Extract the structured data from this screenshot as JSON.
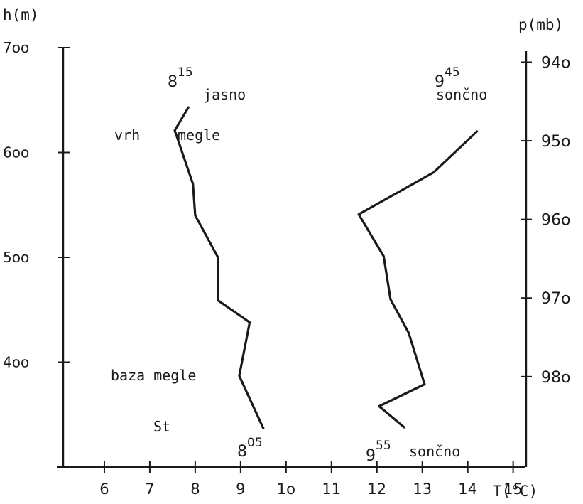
{
  "chart_data": {
    "type": "line",
    "left_axis_label": "h(m)",
    "right_axis_label": "p(mb)",
    "x_axis_label": "T(°C)",
    "x_tick_labels": [
      "6",
      "7",
      "8",
      "9",
      "1o",
      "11",
      "12",
      "13",
      "14",
      "15"
    ],
    "y_tick_labels": [
      {
        "value": 700,
        "text": "7oo"
      },
      {
        "value": 600,
        "text": "6oo"
      },
      {
        "value": 500,
        "text": "5oo"
      },
      {
        "value": 400,
        "text": "4oo"
      }
    ],
    "right_tick_labels": [
      {
        "value": 940,
        "text": "94o"
      },
      {
        "value": 950,
        "text": "95o"
      },
      {
        "value": 960,
        "text": "96o"
      },
      {
        "value": 970,
        "text": "97o"
      },
      {
        "value": 980,
        "text": "98o"
      }
    ],
    "xlim": [
      5,
      16.1
    ],
    "ylim": [
      300,
      700
    ],
    "plim": [
      938.6,
      991.5
    ],
    "series": [
      {
        "start_time": {
          "base": "8",
          "sup": "05"
        },
        "end_time": {
          "base": "8",
          "sup": "15"
        },
        "points": [
          {
            "x": 9.5,
            "y": 337
          },
          {
            "x": 8.97,
            "y": 387
          },
          {
            "x": 9.2,
            "y": 438
          },
          {
            "x": 8.5,
            "y": 459
          },
          {
            "x": 8.5,
            "y": 500
          },
          {
            "x": 8.0,
            "y": 540
          },
          {
            "x": 7.95,
            "y": 570
          },
          {
            "x": 7.55,
            "y": 621
          },
          {
            "x": 7.85,
            "y": 643
          }
        ]
      },
      {
        "start_time": {
          "base": "9",
          "sup": "55"
        },
        "end_time": {
          "base": "9",
          "sup": "45"
        },
        "points": [
          {
            "x": 12.6,
            "y": 338
          },
          {
            "x": 12.05,
            "y": 358
          },
          {
            "x": 13.05,
            "y": 379
          },
          {
            "x": 12.7,
            "y": 428
          },
          {
            "x": 12.3,
            "y": 460
          },
          {
            "x": 12.15,
            "y": 501
          },
          {
            "x": 11.6,
            "y": 541
          },
          {
            "x": 13.25,
            "y": 581
          },
          {
            "x": 14.2,
            "y": 620
          }
        ]
      }
    ],
    "annotations": {
      "jasno": "jasno",
      "vrh": "vrh",
      "megle_top": "megle",
      "baza_megle": "baza megle",
      "st": "St",
      "soncno_top": "sončno",
      "soncno_bottom": "sončno"
    }
  }
}
